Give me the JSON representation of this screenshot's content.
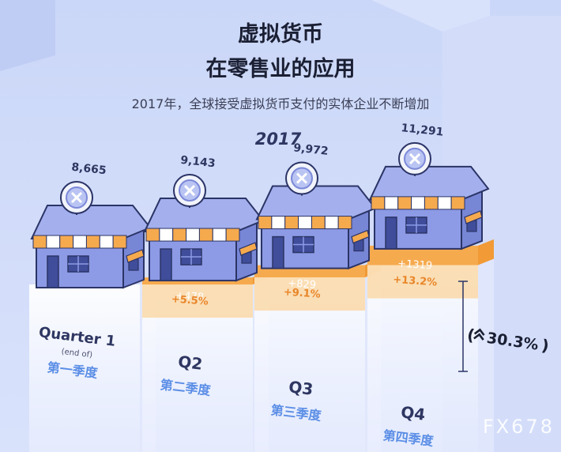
{
  "title_line1": "虚拟货币",
  "title_line2": "在零售业的应用",
  "subtitle": "2017年，全球接受虚拟货币支付的实体企业不断增加",
  "watermark": "FX678",
  "colors": {
    "background": "#c9d6f7",
    "orange": "#f6aa4e",
    "orange_light": "#fbd49c",
    "house_wall": "#8d9be6",
    "house_roof": "#a4b0ee",
    "outline": "#2b3466",
    "label_blue": "#5b8ee6",
    "dark_text": "#2e3661",
    "delta_text": "#ffffff",
    "pct_text": "#e9862a"
  },
  "icons": [
    "house-icon",
    "coin-icon",
    "awning-icon",
    "double-chevron-up-icon"
  ],
  "chart_data": {
    "type": "bar",
    "title": "2017",
    "categories": [
      "Quarter 1",
      "Q2",
      "Q3",
      "Q4"
    ],
    "category_notes": [
      "(end of)",
      "",
      "",
      ""
    ],
    "category_cn": [
      "第一季度",
      "第二季度",
      "第三季度",
      "第四季度"
    ],
    "value_labels": [
      "8,665",
      "9,143",
      "9,972",
      "11,291"
    ],
    "values": [
      8665,
      9143,
      9972,
      11291
    ],
    "increase_labels": [
      "",
      "+478",
      "+829",
      "+1319"
    ],
    "increase_values": [
      0,
      478,
      829,
      1319
    ],
    "growth_labels": [
      "",
      "+5.5%",
      "+9.1%",
      "+13.2%"
    ],
    "total_growth_label": "30.3%"
  }
}
